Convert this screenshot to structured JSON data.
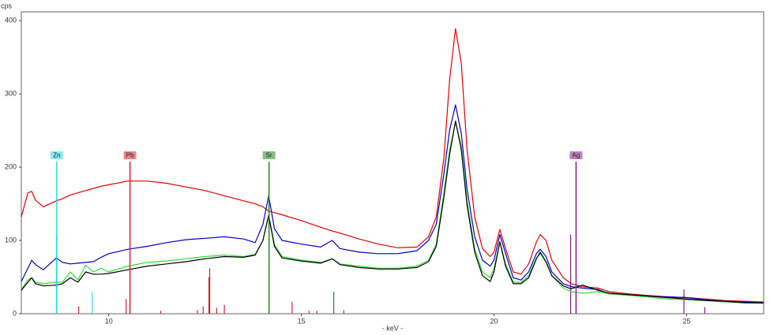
{
  "chart_data": {
    "type": "line",
    "x_label": "- keV -",
    "y_label": "cps",
    "xlim": [
      7.73,
      27
    ],
    "ylim": [
      0,
      412
    ],
    "xticks": [
      10,
      15,
      20,
      25
    ],
    "yticks": [
      0,
      100,
      200,
      300,
      400
    ],
    "x": [
      7.73,
      7.9,
      8.0,
      8.1,
      8.3,
      8.64,
      8.8,
      9.0,
      9.2,
      9.4,
      9.6,
      9.8,
      10.0,
      10.5,
      11.0,
      11.5,
      12.0,
      12.5,
      13.0,
      13.5,
      13.8,
      14.0,
      14.15,
      14.3,
      14.5,
      15.0,
      15.5,
      15.8,
      16.0,
      16.5,
      17.0,
      17.5,
      18.0,
      18.3,
      18.5,
      18.7,
      18.85,
      19.0,
      19.15,
      19.3,
      19.5,
      19.7,
      19.9,
      20.0,
      20.15,
      20.3,
      20.5,
      20.7,
      20.9,
      21.1,
      21.2,
      21.35,
      21.5,
      21.8,
      22.0,
      22.3,
      22.7,
      23.0,
      23.5,
      24.0,
      24.5,
      25.0,
      25.5,
      26.0,
      26.5,
      27.0
    ],
    "series": [
      {
        "color": "#e00000",
        "values": [
          132,
          165,
          167,
          155,
          146,
          154,
          157,
          162,
          165,
          168,
          171,
          174,
          176,
          181,
          181,
          178,
          173,
          168,
          161,
          154,
          150,
          146,
          140,
          138,
          135,
          127,
          118,
          113,
          110,
          102,
          95,
          90,
          91,
          105,
          132,
          213,
          320,
          389,
          342,
          224,
          132,
          89,
          78,
          84,
          115,
          89,
          57,
          54,
          68,
          98,
          108,
          100,
          73,
          49,
          41,
          37,
          35,
          30,
          27,
          25,
          23,
          22,
          20,
          18,
          17,
          16
        ]
      },
      {
        "color": "#0000cc",
        "values": [
          44,
          62,
          73,
          67,
          60,
          76,
          70,
          68,
          69,
          70,
          71,
          77,
          82,
          88,
          92,
          97,
          101,
          103,
          105,
          102,
          97,
          122,
          161,
          116,
          100,
          95,
          91,
          100,
          89,
          84,
          82,
          82,
          86,
          100,
          122,
          191,
          251,
          285,
          246,
          170,
          105,
          73,
          65,
          73,
          108,
          82,
          49,
          46,
          57,
          82,
          88,
          78,
          57,
          41,
          37,
          35,
          33,
          27,
          26,
          24,
          23,
          22,
          19,
          17,
          16,
          15
        ]
      },
      {
        "color": "#33dd33",
        "values": [
          33,
          46,
          49,
          43,
          41,
          43,
          43,
          57,
          46,
          66,
          57,
          62,
          57,
          65,
          70,
          72,
          75,
          78,
          80,
          78,
          81,
          100,
          135,
          95,
          78,
          73,
          70,
          75,
          68,
          65,
          62,
          62,
          65,
          73,
          95,
          165,
          224,
          261,
          229,
          154,
          89,
          57,
          49,
          62,
          98,
          68,
          43,
          43,
          52,
          76,
          82,
          70,
          52,
          35,
          30,
          28,
          30,
          27,
          25,
          23,
          20,
          19,
          18,
          16,
          15,
          14
        ]
      },
      {
        "color": "#000000",
        "values": [
          32,
          43,
          49,
          41,
          38,
          39,
          41,
          49,
          43,
          57,
          54,
          54,
          55,
          60,
          65,
          68,
          71,
          75,
          78,
          77,
          80,
          100,
          134,
          92,
          76,
          72,
          69,
          75,
          67,
          63,
          61,
          61,
          63,
          71,
          92,
          159,
          218,
          263,
          224,
          148,
          84,
          52,
          44,
          57,
          98,
          65,
          41,
          41,
          49,
          75,
          84,
          71,
          52,
          38,
          34,
          39,
          32,
          28,
          26,
          24,
          22,
          20,
          18,
          17,
          15,
          15
        ]
      }
    ],
    "emission_lines": [
      {
        "x": 8.64,
        "value": 105,
        "color": "#33dddd"
      },
      {
        "x": 9.57,
        "value": 30,
        "color": "#33dddd"
      },
      {
        "x": 9.22,
        "value": 10,
        "color": "#cc2222"
      },
      {
        "x": 10.45,
        "value": 20,
        "color": "#cc2222"
      },
      {
        "x": 11.35,
        "value": 4,
        "color": "#cc2222"
      },
      {
        "x": 12.3,
        "value": 5,
        "color": "#cc2222"
      },
      {
        "x": 12.45,
        "value": 10,
        "color": "#cc2222"
      },
      {
        "x": 12.6,
        "value": 50,
        "color": "#cc2222"
      },
      {
        "x": 12.62,
        "value": 62,
        "color": "#cc2222"
      },
      {
        "x": 12.8,
        "value": 8,
        "color": "#cc2222"
      },
      {
        "x": 13.0,
        "value": 12,
        "color": "#cc2222"
      },
      {
        "x": 14.76,
        "value": 16,
        "color": "#cc2222"
      },
      {
        "x": 15.2,
        "value": 4,
        "color": "#cc2222"
      },
      {
        "x": 15.4,
        "value": 4,
        "color": "#cc2222"
      },
      {
        "x": 15.84,
        "value": 30,
        "color": "#228822"
      },
      {
        "x": 16.1,
        "value": 5,
        "color": "#228822"
      },
      {
        "x": 21.99,
        "value": 108,
        "color": "#8a1c8a"
      },
      {
        "x": 24.93,
        "value": 33,
        "color": "#8a1c8a"
      },
      {
        "x": 25.47,
        "value": 9,
        "color": "#8a1c8a"
      }
    ],
    "element_markers": [
      {
        "label": "Zn",
        "x": 8.65,
        "color": "#22dddd"
      },
      {
        "label": "Pb",
        "x": 10.55,
        "color": "#dd2222"
      },
      {
        "label": "Sr",
        "x": 14.16,
        "color": "#228822"
      },
      {
        "label": "Ag",
        "x": 22.13,
        "color": "#8a1c8a"
      }
    ]
  }
}
